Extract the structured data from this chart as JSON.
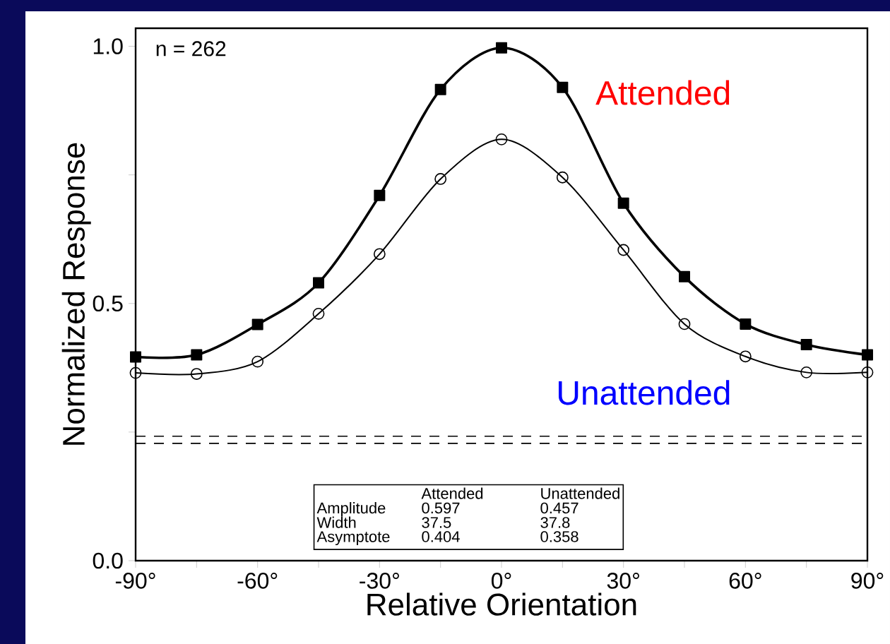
{
  "chart_data": {
    "type": "line",
    "xlabel": "Relative Orientation",
    "ylabel": "Normalized Response",
    "x": [
      -90,
      -75,
      -60,
      -45,
      -30,
      -15,
      0,
      15,
      30,
      45,
      60,
      75,
      90
    ],
    "series": [
      {
        "name": "Attended",
        "color": "#000000",
        "marker": "square",
        "line_style": "solid",
        "values": [
          0.396,
          0.4,
          0.459,
          0.54,
          0.71,
          0.916,
          0.997,
          0.92,
          0.695,
          0.552,
          0.46,
          0.42,
          0.4
        ]
      },
      {
        "name": "Unattended",
        "color": "#000000",
        "marker": "circle",
        "line_style": "solid",
        "values": [
          0.365,
          0.363,
          0.387,
          0.48,
          0.596,
          0.742,
          0.819,
          0.745,
          0.604,
          0.46,
          0.397,
          0.366,
          0.366
        ]
      }
    ],
    "xlim": [
      -90,
      90
    ],
    "xticks": [
      {
        "value": -90,
        "label": "-90°"
      },
      {
        "value": -75,
        "label": null
      },
      {
        "value": -60,
        "label": "-60°"
      },
      {
        "value": -45,
        "label": null
      },
      {
        "value": -30,
        "label": "-30°"
      },
      {
        "value": -15,
        "label": null
      },
      {
        "value": 0,
        "label": "0°"
      },
      {
        "value": 15,
        "label": null
      },
      {
        "value": 30,
        "label": "30°"
      },
      {
        "value": 45,
        "label": null
      },
      {
        "value": 60,
        "label": "60°"
      },
      {
        "value": 75,
        "label": null
      },
      {
        "value": 90,
        "label": "90°"
      }
    ],
    "ylim": [
      0,
      1.035
    ],
    "yticks": [
      {
        "value": 0,
        "label": "0.0"
      },
      {
        "value": 0.25,
        "label": null
      },
      {
        "value": 0.5,
        "label": "0.5"
      },
      {
        "value": 0.75,
        "label": null
      },
      {
        "value": 1.0,
        "label": "1.0"
      }
    ],
    "ref_lines": [
      {
        "axis": "y",
        "value": 0.242,
        "color": "#000000",
        "line_style": "dashed"
      },
      {
        "axis": "y",
        "value": 0.228,
        "color": "#000000",
        "line_style": "dashed"
      }
    ],
    "annotations": [
      "n = 262",
      "Attended",
      "Unattended",
      "Amplitude",
      "0.597",
      "0.457",
      "Width",
      "37.5",
      "37.8",
      "Asymptote",
      "0.404",
      "0.358"
    ]
  }
}
